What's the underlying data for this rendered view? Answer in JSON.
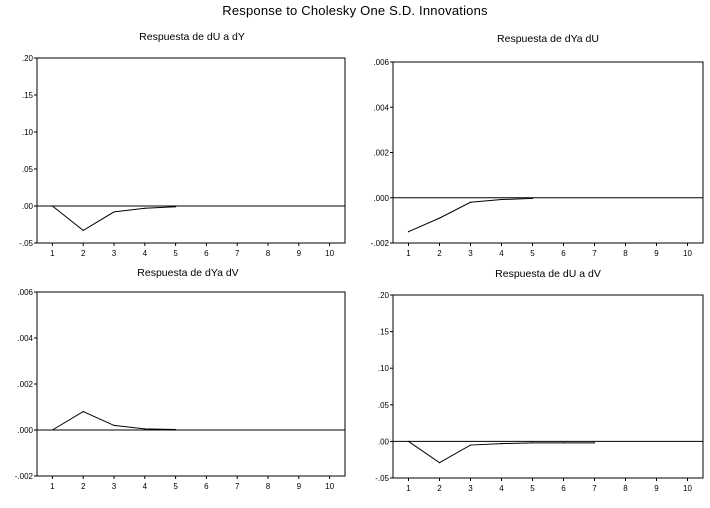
{
  "title": "Response to Cholesky One S.D. Innovations",
  "chart_data": [
    {
      "type": "line",
      "title": "Respuesta de dU a dY",
      "x": [
        1,
        2,
        3,
        4,
        5,
        6,
        7,
        8,
        9,
        10
      ],
      "xticks": [
        "1",
        "2",
        "3",
        "4",
        "5",
        "6",
        "7",
        "8",
        "9",
        "10"
      ],
      "series": [
        {
          "values": [
            0.0,
            -0.033,
            -0.008,
            -0.003,
            -0.001,
            null,
            null,
            null,
            null,
            null
          ]
        }
      ],
      "ylim": [
        -0.05,
        0.2
      ],
      "yticks": [
        {
          "value": 0.2,
          "label": ".20"
        },
        {
          "value": 0.15,
          "label": ".15"
        },
        {
          "value": 0.1,
          "label": ".10"
        },
        {
          "value": 0.05,
          "label": ".05"
        },
        {
          "value": 0.0,
          "label": ".00"
        },
        {
          "value": -0.05,
          "label": "-.05"
        }
      ],
      "zero_line": true,
      "grid": false
    },
    {
      "type": "line",
      "title": "Respuesta de dYa dU",
      "x": [
        1,
        2,
        3,
        4,
        5,
        6,
        7,
        8,
        9,
        10
      ],
      "xticks": [
        "1",
        "2",
        "3",
        "4",
        "5",
        "6",
        "7",
        "8",
        "9",
        "10"
      ],
      "series": [
        {
          "values": [
            -0.0015,
            -0.0009,
            -0.0002,
            -8e-05,
            -3e-05,
            null,
            null,
            null,
            null,
            null
          ]
        }
      ],
      "ylim": [
        -0.002,
        0.006
      ],
      "yticks": [
        {
          "value": 0.006,
          "label": ".006"
        },
        {
          "value": 0.004,
          "label": ".004"
        },
        {
          "value": 0.002,
          "label": ".002"
        },
        {
          "value": 0.0,
          "label": ".000"
        },
        {
          "value": -0.002,
          "label": "-.002"
        }
      ],
      "zero_line": true,
      "grid": false
    },
    {
      "type": "line",
      "title": "Respuesta de dYa dV",
      "x": [
        1,
        2,
        3,
        4,
        5,
        6,
        7,
        8,
        9,
        10
      ],
      "xticks": [
        "1",
        "2",
        "3",
        "4",
        "5",
        "6",
        "7",
        "8",
        "9",
        "10"
      ],
      "series": [
        {
          "values": [
            0.0,
            0.0008,
            0.0002,
            5e-05,
            2e-05,
            null,
            null,
            null,
            null,
            null
          ]
        }
      ],
      "ylim": [
        -0.002,
        0.006
      ],
      "yticks": [
        {
          "value": 0.006,
          "label": ".006"
        },
        {
          "value": 0.004,
          "label": ".004"
        },
        {
          "value": 0.002,
          "label": ".002"
        },
        {
          "value": 0.0,
          "label": ".000"
        },
        {
          "value": -0.002,
          "label": "-.002"
        }
      ],
      "zero_line": true,
      "grid": false
    },
    {
      "type": "line",
      "title": "Respuesta de dU a dV",
      "x": [
        1,
        2,
        3,
        4,
        5,
        6,
        7,
        8,
        9,
        10
      ],
      "xticks": [
        "1",
        "2",
        "3",
        "4",
        "5",
        "6",
        "7",
        "8",
        "9",
        "10"
      ],
      "series": [
        {
          "values": [
            0.0,
            -0.029,
            -0.005,
            -0.003,
            -0.002,
            -0.002,
            -0.002,
            null,
            null,
            null
          ]
        }
      ],
      "ylim": [
        -0.05,
        0.2
      ],
      "yticks": [
        {
          "value": 0.2,
          "label": ".20"
        },
        {
          "value": 0.15,
          "label": ".15"
        },
        {
          "value": 0.1,
          "label": ".10"
        },
        {
          "value": 0.05,
          "label": ".05"
        },
        {
          "value": 0.0,
          "label": ".00"
        },
        {
          "value": -0.05,
          "label": "-.05"
        }
      ],
      "zero_line": true,
      "grid": false
    }
  ]
}
